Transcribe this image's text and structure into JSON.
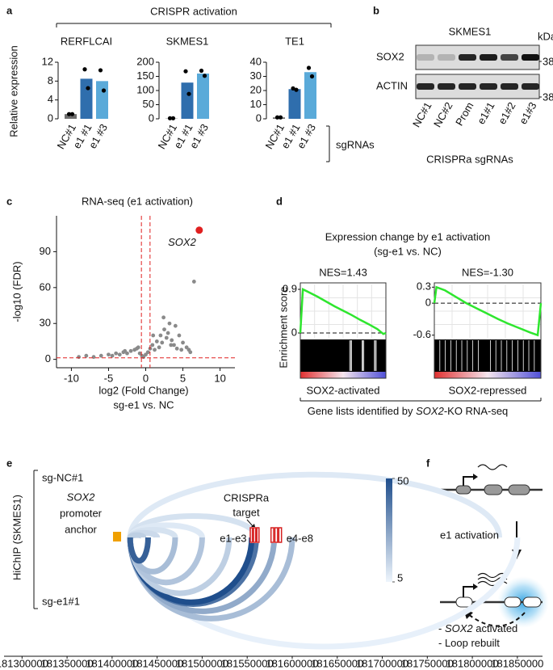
{
  "panel_labels": [
    "a",
    "b",
    "c",
    "d",
    "e",
    "f"
  ],
  "panel_a": {
    "header": "CRISPR activation",
    "y_label": "Relative expression",
    "group_label": "sgRNAs",
    "charts": [
      {
        "type": "bar",
        "title": "RERFLCAI",
        "categories": [
          "NC#1",
          "e1 #1",
          "e1 #3"
        ],
        "colors": [
          "#6e6e6e",
          "#2f6ead",
          "#5aaad9"
        ],
        "values": [
          1,
          8.5,
          8
        ],
        "points": [
          [
            1,
            1
          ],
          [
            10.5,
            6.5
          ],
          [
            10.3,
            6
          ]
        ],
        "ylim": [
          0,
          12
        ],
        "yticks": [
          0,
          4,
          8,
          12
        ]
      },
      {
        "type": "bar",
        "title": "SKMES1",
        "categories": [
          "NC#1",
          "e1 #1",
          "e1 #3"
        ],
        "colors": [
          "#6e6e6e",
          "#2f6ead",
          "#5aaad9"
        ],
        "values": [
          1,
          128,
          160
        ],
        "points": [
          [
            2,
            2
          ],
          [
            168,
            88
          ],
          [
            170,
            152
          ]
        ],
        "ylim": [
          0,
          200
        ],
        "yticks": [
          0,
          50,
          100,
          150,
          200
        ]
      },
      {
        "type": "bar",
        "title": "TE1",
        "categories": [
          "NC#1",
          "e1 #1",
          "e1 #3"
        ],
        "colors": [
          "#6e6e6e",
          "#2f6ead",
          "#5aaad9"
        ],
        "values": [
          1,
          21,
          33
        ],
        "points": [
          [
            1,
            1
          ],
          [
            21.5,
            20.5
          ],
          [
            36,
            30
          ]
        ],
        "ylim": [
          0,
          40
        ],
        "yticks": [
          0,
          10,
          20,
          30,
          40
        ]
      }
    ]
  },
  "panel_b": {
    "cell_line": "SKMES1",
    "unit": "kDa",
    "rows": [
      {
        "name": "SOX2",
        "marker": "38"
      },
      {
        "name": "ACTIN",
        "marker": "38"
      }
    ],
    "lanes": [
      "NC#1",
      "NC#2",
      "Prom",
      "e1#1",
      "e1#2",
      "e1#3"
    ],
    "x_label": "CRISPRa sgRNAs"
  },
  "panel_c": {
    "type": "scatter",
    "title": "RNA-seq (e1 activation)",
    "x_label": "log2 (Fold Change)",
    "x_sublabel": "sg-e1 vs. NC",
    "y_label": "-log10 (FDR)",
    "xlim": [
      -12,
      12
    ],
    "xticks": [
      -10,
      -5,
      0,
      5,
      10
    ],
    "ylim": [
      -7,
      120
    ],
    "yticks": [
      0,
      30,
      60,
      90
    ],
    "color": "#8a8a8a",
    "x": [
      -9,
      -8,
      -7,
      -6,
      -5,
      -4.5,
      -4,
      -3.5,
      -3,
      -2.5,
      -2,
      -1.5,
      -1,
      -0.8,
      -0.5,
      -0.3,
      0,
      0.3,
      0.6,
      0.9,
      1.2,
      1.5,
      1.8,
      2,
      2.2,
      2.5,
      2.8,
      3,
      3.2,
      3.5,
      3.8,
      4,
      4.2,
      4.5,
      4.8,
      5,
      5.5,
      6,
      6.5,
      -1.2,
      2.4,
      3.4,
      1,
      -2.8,
      5.8
    ],
    "y": [
      2,
      3,
      2,
      3,
      4,
      3,
      5,
      4,
      6,
      5,
      7,
      8,
      10,
      5,
      3,
      2,
      4,
      6,
      9,
      12,
      8,
      15,
      10,
      20,
      14,
      25,
      18,
      22,
      30,
      16,
      12,
      28,
      9,
      20,
      8,
      14,
      10,
      6,
      65,
      9,
      35,
      12,
      20,
      7,
      8
    ],
    "highlight": {
      "label": "SOX2",
      "x": 7.2,
      "y": 108,
      "color": "#e02020"
    },
    "thresholds": {
      "x": [
        -0.58,
        0.58
      ],
      "y": 1.3,
      "color": "#e02020"
    }
  },
  "panel_d": {
    "title": "Expression change by e1 activation",
    "subtitle": "(sg-e1 vs. NC)",
    "y_label": "Enrichment score",
    "footer": [
      "Gene lists identified by ",
      "SOX2",
      "-KO RNA-seq"
    ],
    "line_color": "#2ee62e",
    "charts": [
      {
        "type": "line",
        "nes": "NES=1.43",
        "x_label": "SOX2-activated",
        "xlim": [
          0,
          1
        ],
        "ylim": [
          -0.1,
          1.0
        ],
        "yticks": [
          0,
          0.9
        ],
        "x": [
          0,
          0.03,
          0.1,
          0.2,
          0.3,
          0.4,
          0.5,
          0.6,
          0.7,
          0.8,
          0.9,
          0.97,
          1
        ],
        "values": [
          0,
          0.9,
          0.84,
          0.75,
          0.65,
          0.55,
          0.46,
          0.37,
          0.27,
          0.18,
          0.08,
          -0.02,
          0
        ]
      },
      {
        "type": "line",
        "nes": "NES=-1.30",
        "x_label": "SOX2-repressed",
        "xlim": [
          0,
          1
        ],
        "ylim": [
          -0.65,
          0.35
        ],
        "yticks": [
          0.3,
          0,
          -0.6
        ],
        "x": [
          0,
          0.02,
          0.1,
          0.2,
          0.3,
          0.4,
          0.5,
          0.6,
          0.7,
          0.8,
          0.9,
          0.97,
          1
        ],
        "values": [
          0,
          0.3,
          0.24,
          0.12,
          0,
          -0.1,
          -0.2,
          -0.3,
          -0.39,
          -0.47,
          -0.55,
          -0.6,
          0
        ]
      }
    ]
  },
  "panel_e": {
    "track_label": "HiChIP (SKMES1)",
    "anchor_label": [
      "SOX2",
      "promoter",
      "anchor"
    ],
    "target_label": [
      "CRISPRa",
      "target"
    ],
    "anchor": {
      "from": 181401000,
      "to": 181410000
    },
    "regions": [
      {
        "name": "e1-e3",
        "from": 181553000,
        "to": 181564000
      },
      {
        "name": "e4-e8",
        "from": 181576000,
        "to": 181589000
      }
    ],
    "colorbar": {
      "range": [
        5,
        50
      ],
      "ticks": [
        50,
        5
      ]
    },
    "xlim": [
      181280000,
      181860000
    ],
    "xticks": [
      181300000,
      181350000,
      181400000,
      181450000,
      181500000,
      181550000,
      181600000,
      181650000,
      181700000,
      181750000,
      181800000,
      181850000
    ],
    "tracks": [
      {
        "name": "sg-NC#1",
        "arcs": [
          {
            "from": 181420000,
            "to": 181830000,
            "value": 8
          },
          {
            "from": 181420000,
            "to": 181560000,
            "value": 10
          },
          {
            "from": 181420000,
            "to": 181500000,
            "value": 8
          },
          {
            "from": 181420000,
            "to": 181470000,
            "value": 10
          },
          {
            "from": 181420000,
            "to": 181450000,
            "value": 12
          },
          {
            "from": 181420000,
            "to": 181435000,
            "value": 15
          }
        ]
      },
      {
        "name": "sg-e1#1",
        "arcs": [
          {
            "from": 181420000,
            "to": 181850000,
            "value": 6
          },
          {
            "from": 181420000,
            "to": 181600000,
            "value": 20
          },
          {
            "from": 181420000,
            "to": 181580000,
            "value": 25
          },
          {
            "from": 181420000,
            "to": 181560000,
            "value": 40
          },
          {
            "from": 181420000,
            "to": 181555000,
            "value": 50
          },
          {
            "from": 181420000,
            "to": 181530000,
            "value": 15
          },
          {
            "from": 181420000,
            "to": 181500000,
            "value": 18
          },
          {
            "from": 181420000,
            "to": 181470000,
            "value": 20
          },
          {
            "from": 181420000,
            "to": 181440000,
            "value": 45
          }
        ]
      }
    ]
  },
  "panel_f": {
    "step": "e1 activation",
    "outcomes": [
      [
        "- ",
        "SOX2",
        " activated"
      ],
      [
        "- Loop rebuilt"
      ]
    ]
  }
}
